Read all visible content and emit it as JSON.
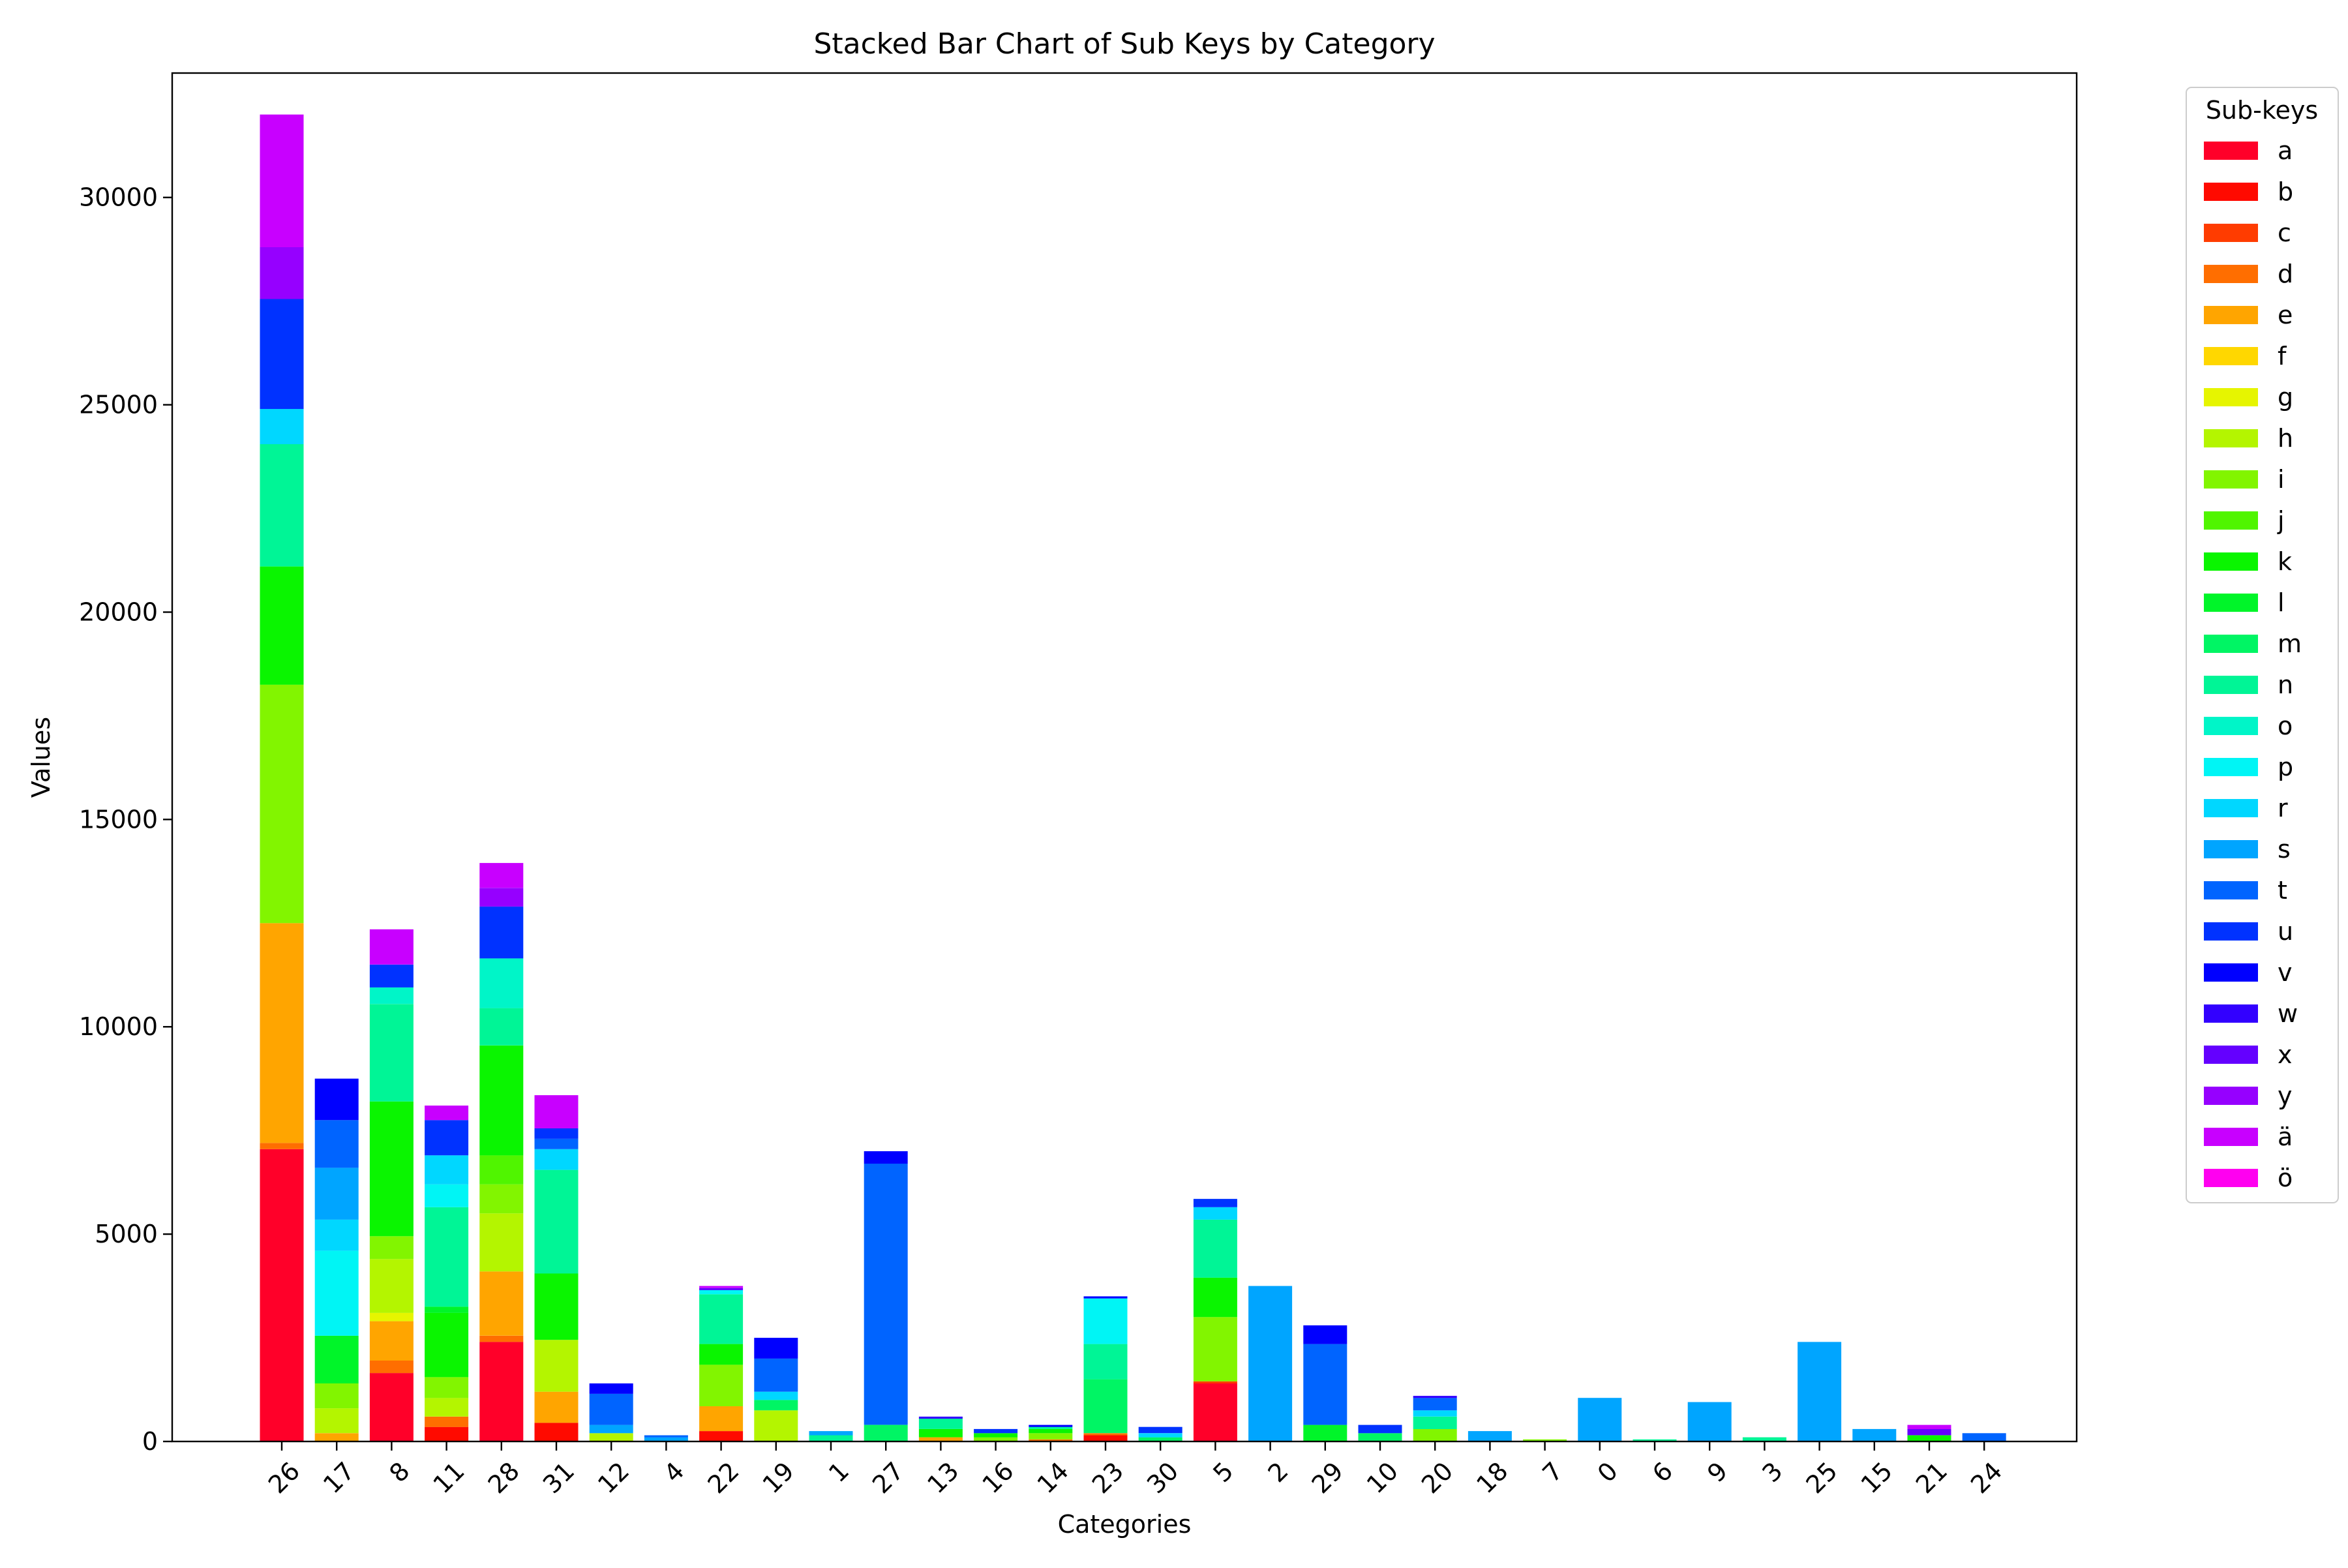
{
  "chart_data": {
    "type": "bar",
    "stacked": true,
    "title": "Stacked Bar Chart of Sub Keys by Category",
    "xlabel": "Categories",
    "ylabel": "Values",
    "ylim": [
      0,
      33000
    ],
    "yticks": [
      0,
      5000,
      10000,
      15000,
      20000,
      25000,
      30000
    ],
    "ytick_labels": [
      "0",
      "5000",
      "10000",
      "15000",
      "20000",
      "25000",
      "30000"
    ],
    "grid": false,
    "legend": {
      "title": "Sub-keys",
      "placement": "outside-top-right"
    },
    "categories": [
      "26",
      "17",
      "8",
      "11",
      "28",
      "31",
      "12",
      "4",
      "22",
      "19",
      "1",
      "27",
      "13",
      "16",
      "14",
      "23",
      "30",
      "5",
      "2",
      "29",
      "10",
      "20",
      "18",
      "7",
      "0",
      "6",
      "9",
      "3",
      "25",
      "15",
      "21",
      "24"
    ],
    "series": [
      {
        "name": "a",
        "color": "#ff0029",
        "values": [
          7050,
          0,
          1650,
          0,
          2400,
          0,
          0,
          0,
          0,
          0,
          0,
          0,
          0,
          0,
          0,
          0,
          0,
          1400,
          0,
          0,
          0,
          0,
          0,
          0,
          0,
          0,
          0,
          0,
          0,
          0,
          0,
          0
        ]
      },
      {
        "name": "b",
        "color": "#ff0a00",
        "values": [
          0,
          0,
          0,
          350,
          0,
          450,
          0,
          0,
          250,
          0,
          0,
          0,
          0,
          0,
          0,
          150,
          0,
          0,
          0,
          0,
          0,
          0,
          0,
          0,
          0,
          0,
          0,
          0,
          0,
          0,
          0,
          0
        ]
      },
      {
        "name": "c",
        "color": "#ff3c00",
        "values": [
          0,
          0,
          0,
          0,
          0,
          0,
          0,
          0,
          0,
          0,
          0,
          0,
          0,
          0,
          0,
          0,
          0,
          50,
          0,
          0,
          0,
          0,
          0,
          0,
          0,
          0,
          0,
          0,
          0,
          0,
          0,
          0
        ]
      },
      {
        "name": "d",
        "color": "#ff6e00",
        "values": [
          150,
          0,
          300,
          250,
          150,
          0,
          0,
          0,
          0,
          0,
          0,
          0,
          0,
          0,
          50,
          50,
          0,
          0,
          0,
          0,
          0,
          0,
          0,
          0,
          0,
          0,
          0,
          0,
          0,
          0,
          0,
          0
        ]
      },
      {
        "name": "e",
        "color": "#ffa500",
        "values": [
          5300,
          200,
          950,
          0,
          1550,
          750,
          0,
          0,
          600,
          0,
          0,
          0,
          100,
          0,
          0,
          0,
          0,
          0,
          0,
          0,
          0,
          0,
          0,
          0,
          0,
          0,
          0,
          0,
          0,
          0,
          0,
          0
        ]
      },
      {
        "name": "f",
        "color": "#ffd700",
        "values": [
          0,
          0,
          0,
          0,
          0,
          0,
          0,
          0,
          0,
          0,
          0,
          0,
          0,
          0,
          0,
          0,
          0,
          0,
          0,
          0,
          0,
          0,
          0,
          0,
          0,
          0,
          0,
          0,
          0,
          0,
          0,
          0
        ]
      },
      {
        "name": "g",
        "color": "#e6f500",
        "values": [
          0,
          0,
          200,
          0,
          0,
          0,
          0,
          0,
          0,
          0,
          0,
          0,
          0,
          0,
          0,
          0,
          0,
          0,
          0,
          0,
          0,
          0,
          0,
          0,
          0,
          0,
          0,
          0,
          0,
          0,
          0,
          0
        ]
      },
      {
        "name": "h",
        "color": "#b4f500",
        "values": [
          0,
          600,
          1300,
          450,
          1400,
          1250,
          200,
          0,
          0,
          750,
          0,
          0,
          0,
          0,
          0,
          0,
          0,
          0,
          0,
          0,
          0,
          0,
          0,
          0,
          0,
          0,
          0,
          0,
          0,
          0,
          0,
          0
        ]
      },
      {
        "name": "i",
        "color": "#82f500",
        "values": [
          5750,
          600,
          550,
          500,
          700,
          0,
          0,
          0,
          1000,
          0,
          0,
          0,
          0,
          100,
          150,
          0,
          0,
          1550,
          0,
          0,
          0,
          300,
          0,
          50,
          0,
          0,
          0,
          0,
          0,
          0,
          0,
          0
        ]
      },
      {
        "name": "j",
        "color": "#50f500",
        "values": [
          0,
          0,
          0,
          0,
          700,
          0,
          0,
          0,
          0,
          0,
          0,
          0,
          0,
          0,
          0,
          0,
          0,
          0,
          0,
          0,
          0,
          0,
          0,
          0,
          0,
          0,
          0,
          0,
          0,
          0,
          0,
          0
        ]
      },
      {
        "name": "k",
        "color": "#0af500",
        "values": [
          2850,
          0,
          3250,
          1550,
          2650,
          1600,
          0,
          0,
          500,
          0,
          0,
          0,
          200,
          100,
          100,
          0,
          0,
          950,
          0,
          0,
          0,
          0,
          0,
          0,
          0,
          0,
          0,
          0,
          0,
          0,
          150,
          0
        ]
      },
      {
        "name": "l",
        "color": "#00f529",
        "values": [
          0,
          1150,
          0,
          150,
          0,
          0,
          0,
          0,
          0,
          0,
          0,
          0,
          0,
          0,
          0,
          0,
          0,
          0,
          0,
          400,
          0,
          0,
          0,
          0,
          0,
          0,
          0,
          0,
          0,
          0,
          0,
          0
        ]
      },
      {
        "name": "m",
        "color": "#00f564",
        "values": [
          0,
          0,
          0,
          0,
          0,
          0,
          0,
          0,
          0,
          250,
          0,
          400,
          0,
          0,
          0,
          1300,
          100,
          0,
          0,
          0,
          200,
          0,
          0,
          0,
          0,
          0,
          0,
          0,
          0,
          0,
          0,
          0
        ]
      },
      {
        "name": "n",
        "color": "#00f596",
        "values": [
          2950,
          0,
          2350,
          2400,
          900,
          2500,
          0,
          0,
          1200,
          0,
          150,
          0,
          250,
          0,
          50,
          850,
          0,
          1400,
          0,
          0,
          0,
          300,
          0,
          0,
          0,
          50,
          0,
          100,
          0,
          0,
          0,
          0
        ]
      },
      {
        "name": "o",
        "color": "#00f5c8",
        "values": [
          0,
          0,
          400,
          0,
          1200,
          0,
          0,
          0,
          0,
          0,
          0,
          0,
          0,
          0,
          0,
          0,
          0,
          0,
          0,
          0,
          0,
          0,
          0,
          0,
          0,
          0,
          0,
          0,
          0,
          0,
          0,
          0
        ]
      },
      {
        "name": "p",
        "color": "#00f5f5",
        "values": [
          0,
          2050,
          0,
          550,
          0,
          0,
          0,
          0,
          100,
          0,
          0,
          0,
          0,
          0,
          0,
          1100,
          0,
          0,
          0,
          0,
          0,
          0,
          0,
          0,
          0,
          0,
          0,
          0,
          0,
          0,
          0,
          0
        ]
      },
      {
        "name": "r",
        "color": "#00d7ff",
        "values": [
          850,
          750,
          0,
          700,
          0,
          500,
          0,
          0,
          0,
          200,
          0,
          0,
          0,
          0,
          0,
          0,
          100,
          300,
          0,
          0,
          0,
          150,
          0,
          0,
          0,
          0,
          0,
          0,
          0,
          0,
          0,
          0
        ]
      },
      {
        "name": "s",
        "color": "#00a5ff",
        "values": [
          0,
          1250,
          0,
          0,
          0,
          0,
          200,
          100,
          0,
          0,
          100,
          0,
          0,
          0,
          0,
          0,
          0,
          0,
          3750,
          0,
          0,
          0,
          250,
          0,
          1050,
          0,
          950,
          0,
          2400,
          300,
          0,
          0
        ]
      },
      {
        "name": "t",
        "color": "#0064ff",
        "values": [
          0,
          1150,
          0,
          0,
          0,
          250,
          750,
          50,
          0,
          800,
          0,
          6300,
          0,
          0,
          0,
          0,
          0,
          0,
          0,
          1950,
          0,
          300,
          0,
          0,
          0,
          0,
          0,
          0,
          0,
          0,
          0,
          200
        ]
      },
      {
        "name": "u",
        "color": "#0032ff",
        "values": [
          2650,
          0,
          550,
          850,
          1250,
          250,
          0,
          0,
          0,
          0,
          0,
          0,
          0,
          100,
          0,
          0,
          150,
          200,
          0,
          0,
          200,
          0,
          0,
          0,
          0,
          0,
          0,
          0,
          0,
          0,
          0,
          0
        ]
      },
      {
        "name": "v",
        "color": "#0000ff",
        "values": [
          0,
          1000,
          0,
          0,
          0,
          0,
          250,
          0,
          0,
          500,
          0,
          300,
          0,
          0,
          50,
          50,
          0,
          0,
          0,
          450,
          0,
          0,
          0,
          0,
          0,
          0,
          0,
          0,
          0,
          0,
          0,
          0
        ]
      },
      {
        "name": "w",
        "color": "#3200ff",
        "values": [
          0,
          0,
          0,
          0,
          0,
          0,
          0,
          0,
          0,
          0,
          0,
          0,
          50,
          0,
          0,
          0,
          0,
          0,
          0,
          0,
          0,
          50,
          0,
          0,
          0,
          0,
          0,
          0,
          0,
          0,
          0,
          0
        ]
      },
      {
        "name": "x",
        "color": "#6400ff",
        "values": [
          0,
          0,
          0,
          0,
          0,
          0,
          0,
          0,
          50,
          0,
          0,
          0,
          0,
          0,
          0,
          0,
          0,
          0,
          0,
          0,
          0,
          0,
          0,
          0,
          0,
          0,
          0,
          0,
          0,
          0,
          150,
          0
        ]
      },
      {
        "name": "y",
        "color": "#9600ff",
        "values": [
          1250,
          0,
          0,
          0,
          450,
          0,
          0,
          0,
          0,
          0,
          0,
          0,
          0,
          0,
          0,
          0,
          0,
          0,
          0,
          0,
          0,
          0,
          0,
          0,
          0,
          0,
          0,
          0,
          0,
          0,
          0,
          0
        ]
      },
      {
        "name": "ä",
        "color": "#c800ff",
        "values": [
          3200,
          0,
          850,
          350,
          600,
          800,
          0,
          0,
          50,
          0,
          0,
          0,
          0,
          0,
          0,
          0,
          0,
          0,
          0,
          0,
          0,
          0,
          0,
          0,
          0,
          0,
          0,
          0,
          0,
          0,
          100,
          0
        ]
      },
      {
        "name": "ö",
        "color": "#ff00f0",
        "values": [
          0,
          0,
          0,
          0,
          0,
          0,
          0,
          0,
          0,
          0,
          0,
          0,
          0,
          0,
          0,
          0,
          0,
          0,
          0,
          0,
          0,
          0,
          0,
          0,
          0,
          0,
          0,
          0,
          0,
          0,
          0,
          0
        ]
      }
    ]
  }
}
